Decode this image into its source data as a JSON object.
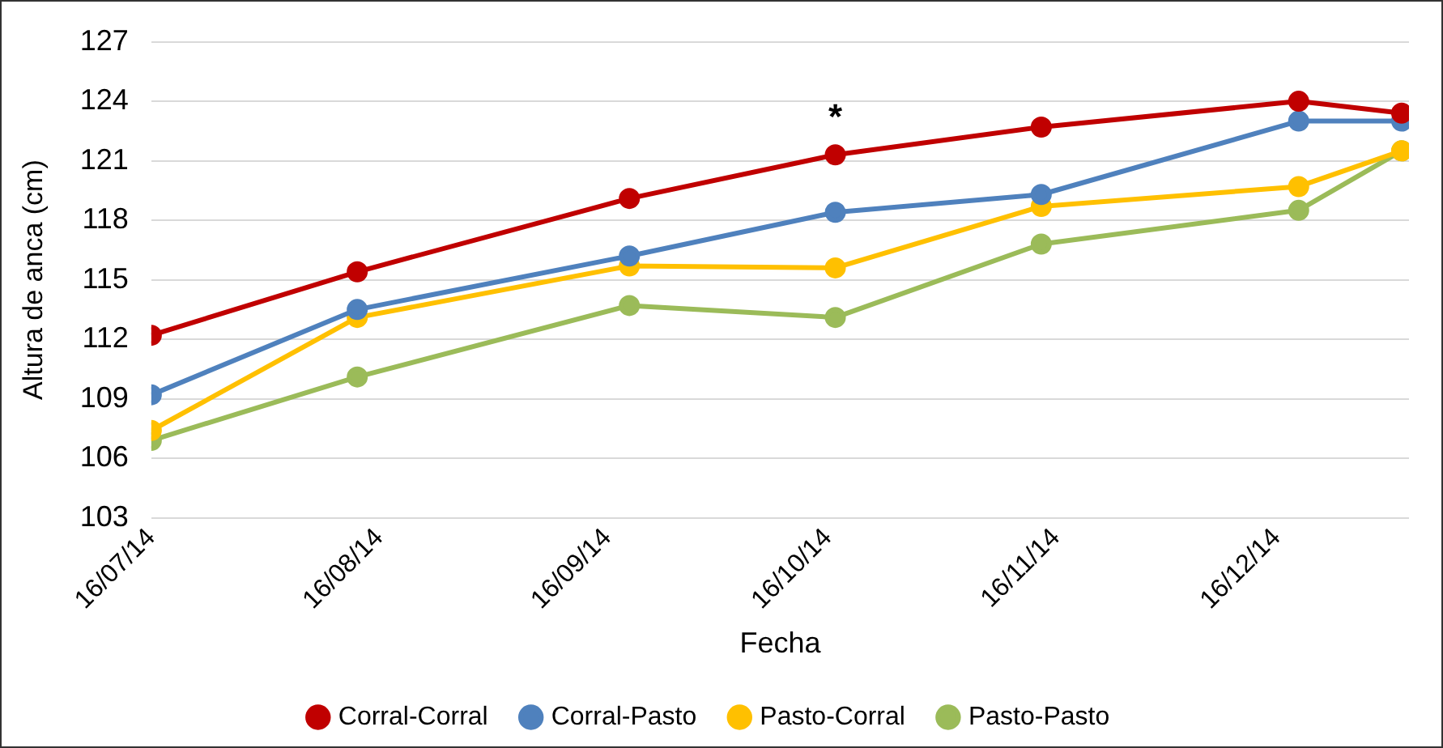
{
  "chart_data": {
    "type": "line",
    "xlabel": "Fecha",
    "ylabel": "Altura de anca (cm)",
    "x": [
      "2014-07-16",
      "2014-08-13",
      "2014-09-19",
      "2014-10-17",
      "2014-11-14",
      "2014-12-19",
      "2015-01-02"
    ],
    "series": [
      {
        "name": "Corral-Corral",
        "color": "#c00000",
        "values": [
          112.2,
          115.4,
          119.1,
          121.3,
          122.7,
          124.0,
          123.4
        ]
      },
      {
        "name": "Corral-Pasto",
        "color": "#4f81bd",
        "values": [
          109.2,
          113.5,
          116.2,
          118.4,
          119.3,
          123.0,
          123.0
        ]
      },
      {
        "name": "Pasto-Corral",
        "color": "#ffc000",
        "values": [
          107.4,
          113.1,
          115.7,
          115.6,
          118.7,
          119.7,
          121.5
        ]
      },
      {
        "name": "Pasto-Pasto",
        "color": "#9bbb59",
        "values": [
          106.9,
          110.1,
          113.7,
          113.1,
          116.8,
          118.5,
          121.5
        ]
      }
    ],
    "xlim": [
      "2014-07-16",
      "2015-01-03"
    ],
    "xticks": [
      {
        "value": "2014-07-16",
        "label": "16/07/14"
      },
      {
        "value": "2014-08-16",
        "label": "16/08/14"
      },
      {
        "value": "2014-09-16",
        "label": "16/09/14"
      },
      {
        "value": "2014-10-16",
        "label": "16/10/14"
      },
      {
        "value": "2014-11-16",
        "label": "16/11/14"
      },
      {
        "value": "2014-12-16",
        "label": "16/12/14"
      }
    ],
    "ylim": [
      103,
      127
    ],
    "yticks": [
      103,
      106,
      109,
      112,
      115,
      118,
      121,
      124,
      127
    ],
    "grid": "y",
    "legend": "bottom",
    "marker": "circle",
    "annotations": [
      {
        "text": "*",
        "x": "2014-10-17",
        "y": 121.3
      }
    ]
  }
}
